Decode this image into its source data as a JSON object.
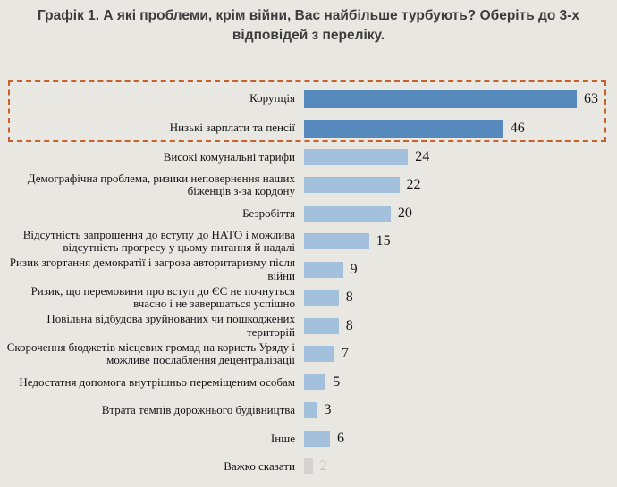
{
  "header": {
    "title": "Графік 1. А які проблеми, крім війни, Вас найбільше турбують? Оберіть до 3-х відповідей з переліку."
  },
  "colors": {
    "background": "#e8e7e2",
    "title_text": "#3d3d3d",
    "label_text": "#141414",
    "bar_dark": "#568abd",
    "bar_light": "#a3c0dd",
    "bar_gray": "#d4d3d0",
    "value_text": "#151515",
    "value_muted_text": "#c2c1bd",
    "highlight_border": "#c7602b"
  },
  "chart_data": {
    "type": "bar",
    "orientation": "horizontal",
    "title": "Графік 1. А які проблеми, крім війни, Вас найбільше турбують? Оберіть до 3-х відповідей з переліку.",
    "xlabel": "",
    "ylabel": "",
    "xlim": [
      0,
      63
    ],
    "grid": false,
    "legend": false,
    "value_labels": true,
    "highlight_box": {
      "style": "dashed-orange",
      "categories": [
        "Корупція",
        "Низькі зарплати та пенсії"
      ]
    },
    "categories": [
      "Корупція",
      "Низькі зарплати та пенсії",
      "Високі комунальні тарифи",
      "Демографічна проблема, ризики неповернення наших біженців з-за кордону",
      "Безробіття",
      "Відсутність запрошення до вступу до НАТО і можлива відсутність прогресу у цьому питання й надалі",
      "Ризик  згортання демократії і загроза авторитаризму після війни",
      "Ризик, що перемовини про вступ до ЄС не почнуться вчасно і не завершаться успішно",
      "Повільна відбудова зруйнованих чи пошкоджених територій",
      "Скорочення бюджетів місцевих громад на користь Уряду і можливе послаблення децентралізації",
      "Недостатня допомога внутрішньо переміщеним особам",
      "Втрата темпів дорожнього будівництва",
      "Інше",
      "Важко сказати"
    ],
    "values": [
      63,
      46,
      24,
      22,
      20,
      15,
      9,
      8,
      8,
      7,
      5,
      3,
      6,
      2
    ],
    "bar_styles": [
      "dark",
      "dark",
      "light",
      "light",
      "light",
      "light",
      "light",
      "light",
      "light",
      "light",
      "light",
      "light",
      "light",
      "gray"
    ]
  }
}
